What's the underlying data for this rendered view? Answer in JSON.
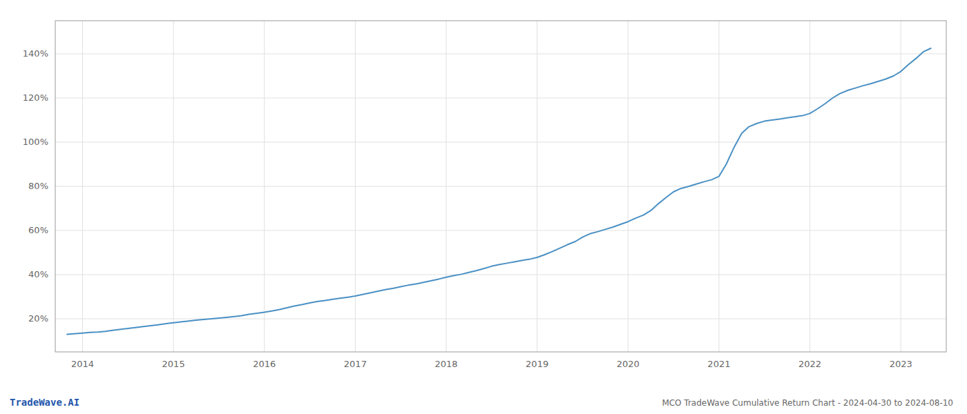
{
  "chart_data": {
    "type": "line",
    "title": "MCO TradeWave Cumulative Return Chart - 2024-04-30 to 2024-08-10",
    "annotations": [
      "TradeWave.AI"
    ],
    "color": "#4a90c4",
    "grid": true,
    "xlim": [
      2013.7,
      2023.5
    ],
    "ylim": [
      5,
      155
    ],
    "xticks": [
      2014,
      2015,
      2016,
      2017,
      2018,
      2019,
      2020,
      2021,
      2022,
      2023
    ],
    "yticks": [
      {
        "value": 20,
        "label": "20%"
      },
      {
        "value": 40,
        "label": "40%"
      },
      {
        "value": 60,
        "label": "60%"
      },
      {
        "value": 80,
        "label": "80%"
      },
      {
        "value": 100,
        "label": "100%"
      },
      {
        "value": 120,
        "label": "120%"
      },
      {
        "value": 140,
        "label": "140%"
      }
    ],
    "x": [
      2013.83,
      2014.0,
      2014.08,
      2014.17,
      2014.25,
      2014.33,
      2014.42,
      2014.5,
      2014.58,
      2014.67,
      2014.75,
      2014.83,
      2014.92,
      2015.0,
      2015.08,
      2015.17,
      2015.25,
      2015.33,
      2015.42,
      2015.5,
      2015.58,
      2015.67,
      2015.75,
      2015.83,
      2015.92,
      2016.0,
      2016.08,
      2016.17,
      2016.25,
      2016.33,
      2016.42,
      2016.5,
      2016.58,
      2016.67,
      2016.75,
      2016.83,
      2016.92,
      2017.0,
      2017.08,
      2017.17,
      2017.25,
      2017.33,
      2017.42,
      2017.5,
      2017.58,
      2017.67,
      2017.75,
      2017.83,
      2017.92,
      2018.0,
      2018.08,
      2018.17,
      2018.25,
      2018.33,
      2018.42,
      2018.5,
      2018.58,
      2018.67,
      2018.75,
      2018.83,
      2018.92,
      2019.0,
      2019.08,
      2019.17,
      2019.25,
      2019.33,
      2019.42,
      2019.5,
      2019.58,
      2019.67,
      2019.75,
      2019.83,
      2019.92,
      2020.0,
      2020.08,
      2020.17,
      2020.25,
      2020.33,
      2020.42,
      2020.5,
      2020.58,
      2020.67,
      2020.75,
      2020.83,
      2020.92,
      2021.0,
      2021.08,
      2021.17,
      2021.25,
      2021.33,
      2021.42,
      2021.5,
      2021.58,
      2021.67,
      2021.75,
      2021.83,
      2021.92,
      2022.0,
      2022.08,
      2022.17,
      2022.25,
      2022.33,
      2022.42,
      2022.5,
      2022.58,
      2022.67,
      2022.75,
      2022.83,
      2022.92,
      2023.0,
      2023.08,
      2023.17,
      2023.25,
      2023.33
    ],
    "values": [
      13.0,
      13.5,
      13.8,
      14.0,
      14.3,
      14.8,
      15.2,
      15.6,
      16.0,
      16.5,
      16.9,
      17.3,
      17.8,
      18.2,
      18.6,
      19.0,
      19.4,
      19.7,
      20.0,
      20.3,
      20.6,
      21.0,
      21.4,
      22.0,
      22.5,
      23.0,
      23.5,
      24.2,
      25.0,
      25.8,
      26.5,
      27.2,
      27.8,
      28.3,
      28.8,
      29.3,
      29.8,
      30.3,
      31.0,
      31.8,
      32.5,
      33.2,
      33.8,
      34.5,
      35.2,
      35.8,
      36.5,
      37.2,
      38.0,
      38.8,
      39.5,
      40.2,
      41.0,
      41.8,
      42.8,
      43.8,
      44.5,
      45.2,
      45.8,
      46.4,
      47.0,
      47.8,
      49.0,
      50.5,
      52.0,
      53.5,
      55.0,
      57.0,
      58.5,
      59.5,
      60.5,
      61.5,
      62.8,
      64.0,
      65.5,
      67.0,
      69.0,
      72.0,
      75.0,
      77.5,
      79.0,
      80.0,
      81.0,
      82.0,
      83.0,
      84.5,
      90.0,
      98.0,
      104.0,
      107.0,
      108.5,
      109.5,
      110.0,
      110.5,
      111.0,
      111.5,
      112.0,
      113.0,
      115.0,
      117.5,
      120.0,
      122.0,
      123.5,
      124.5,
      125.5,
      126.5,
      127.5,
      128.5,
      130.0,
      132.0,
      135.0,
      138.0,
      141.0,
      142.5
    ]
  }
}
